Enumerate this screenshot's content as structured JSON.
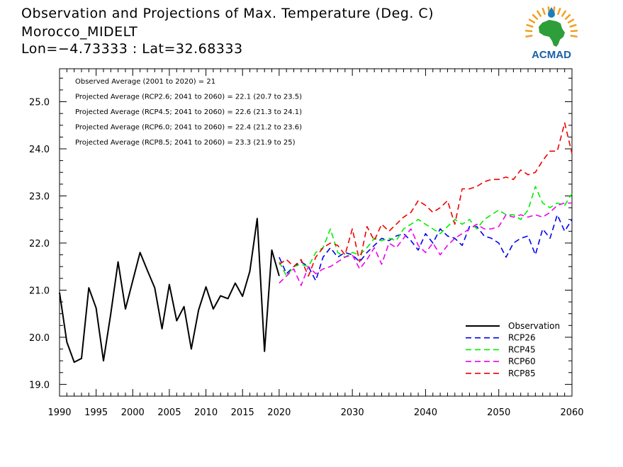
{
  "title": {
    "line1": "Observation and Projections of Max. Temperature (Deg. C)",
    "line2": "Morocco_MIDELT",
    "line3": "Lon=−4.73333 : Lat=32.68333"
  },
  "logo": {
    "text": "ACMAD",
    "icon": "africa-map-logo-icon",
    "colors": {
      "africa": "#2e9e3a",
      "sun": "#f0a020",
      "drop": "#1a7fc0",
      "text": "#1a5fa8"
    }
  },
  "annotations": [
    "Observed Average (2001 to 2020) = 21",
    "Projected Average (RCP2.6; 2041 to 2060) = 22.1 (20.7 to 23.5)",
    "Projected Average (RCP4.5; 2041 to 2060) = 22.6 (21.3 to 24.1)",
    "Projected Average (RCP6.0; 2041 to 2060) = 22.4 (21.2 to 23.6)",
    "Projected Average (RCP8.5; 2041 to 2060) = 23.3 (21.9 to 25)"
  ],
  "chart_data": {
    "type": "line",
    "x_range": [
      1990,
      2060
    ],
    "ylim": [
      18.75,
      25.7
    ],
    "x_ticks": [
      1990,
      1995,
      2000,
      2005,
      2010,
      2015,
      2020,
      2030,
      2040,
      2050,
      2060
    ],
    "y_ticks": [
      19.0,
      20.0,
      21.0,
      22.0,
      23.0,
      24.0,
      25.0
    ],
    "y_tick_labels": [
      "19.0",
      "20.0",
      "21.0",
      "22.0",
      "23.0",
      "24.0",
      "25.0"
    ],
    "grid": false,
    "legend_position": "bottom-right",
    "series": [
      {
        "name": "Observation",
        "color": "#000000",
        "dashed": false,
        "x": [
          1990,
          1991,
          1992,
          1993,
          1994,
          1995,
          1996,
          1997,
          1998,
          1999,
          2000,
          2001,
          2002,
          2003,
          2004,
          2005,
          2006,
          2007,
          2008,
          2009,
          2010,
          2011,
          2012,
          2013,
          2014,
          2015,
          2016,
          2017,
          2018,
          2019,
          2020
        ],
        "values": [
          20.95,
          19.9,
          19.47,
          19.55,
          21.05,
          20.62,
          19.5,
          20.5,
          21.6,
          20.6,
          21.2,
          21.8,
          21.42,
          21.05,
          20.18,
          21.12,
          20.35,
          20.65,
          19.75,
          20.58,
          21.07,
          20.6,
          20.88,
          20.82,
          21.15,
          20.87,
          21.4,
          22.52,
          19.7,
          21.85,
          21.3
        ]
      },
      {
        "name": "RCP26",
        "color": "#0000ee",
        "dashed": true,
        "x": [
          2020,
          2021,
          2022,
          2023,
          2024,
          2025,
          2026,
          2027,
          2028,
          2029,
          2030,
          2031,
          2032,
          2033,
          2034,
          2035,
          2036,
          2037,
          2038,
          2039,
          2040,
          2041,
          2042,
          2043,
          2044,
          2045,
          2046,
          2047,
          2048,
          2049,
          2050,
          2051,
          2052,
          2053,
          2054,
          2055,
          2056,
          2057,
          2058,
          2059,
          2060
        ],
        "values": [
          21.7,
          21.35,
          21.5,
          21.6,
          21.5,
          21.2,
          21.7,
          21.9,
          21.7,
          21.8,
          21.75,
          21.6,
          21.8,
          21.95,
          22.1,
          22.05,
          22.15,
          22.2,
          22.05,
          21.85,
          22.2,
          22.0,
          22.3,
          22.15,
          22.1,
          21.95,
          22.35,
          22.35,
          22.15,
          22.1,
          22.0,
          21.7,
          22.0,
          22.1,
          22.15,
          21.75,
          22.3,
          22.1,
          22.6,
          22.25,
          22.5
        ]
      },
      {
        "name": "RCP45",
        "color": "#00ee00",
        "dashed": true,
        "x": [
          2020,
          2021,
          2022,
          2023,
          2024,
          2025,
          2026,
          2027,
          2028,
          2029,
          2030,
          2031,
          2032,
          2033,
          2034,
          2035,
          2036,
          2037,
          2038,
          2039,
          2040,
          2041,
          2042,
          2043,
          2044,
          2045,
          2046,
          2047,
          2048,
          2049,
          2050,
          2051,
          2052,
          2053,
          2054,
          2055,
          2056,
          2057,
          2058,
          2059,
          2060
        ],
        "values": [
          21.6,
          21.3,
          21.5,
          21.55,
          21.5,
          21.8,
          21.9,
          22.3,
          21.8,
          21.7,
          21.8,
          21.75,
          21.9,
          22.1,
          22.05,
          22.1,
          22.05,
          22.3,
          22.4,
          22.5,
          22.4,
          22.3,
          22.2,
          22.35,
          22.5,
          22.4,
          22.5,
          22.3,
          22.5,
          22.6,
          22.7,
          22.6,
          22.6,
          22.5,
          22.7,
          23.2,
          22.85,
          22.75,
          22.85,
          22.8,
          23.05
        ]
      },
      {
        "name": "RCP60",
        "color": "#ee00ee",
        "dashed": true,
        "x": [
          2020,
          2021,
          2022,
          2023,
          2024,
          2025,
          2026,
          2027,
          2028,
          2029,
          2030,
          2031,
          2032,
          2033,
          2034,
          2035,
          2036,
          2037,
          2038,
          2039,
          2040,
          2041,
          2042,
          2043,
          2044,
          2045,
          2046,
          2047,
          2048,
          2049,
          2050,
          2051,
          2052,
          2053,
          2054,
          2055,
          2056,
          2057,
          2058,
          2059,
          2060
        ],
        "values": [
          21.15,
          21.3,
          21.45,
          21.1,
          21.5,
          21.35,
          21.45,
          21.5,
          21.6,
          21.7,
          21.75,
          21.45,
          21.65,
          21.9,
          21.55,
          22.0,
          21.9,
          22.1,
          22.3,
          21.95,
          21.8,
          22.0,
          21.75,
          21.95,
          22.1,
          22.2,
          22.3,
          22.4,
          22.3,
          22.3,
          22.35,
          22.6,
          22.55,
          22.6,
          22.55,
          22.6,
          22.55,
          22.65,
          22.8,
          22.85,
          22.85
        ]
      },
      {
        "name": "RCP85",
        "color": "#ee0000",
        "dashed": true,
        "x": [
          2020,
          2021,
          2022,
          2023,
          2024,
          2025,
          2026,
          2027,
          2028,
          2029,
          2030,
          2031,
          2032,
          2033,
          2034,
          2035,
          2036,
          2037,
          2038,
          2039,
          2040,
          2041,
          2042,
          2043,
          2044,
          2045,
          2046,
          2047,
          2048,
          2049,
          2050,
          2051,
          2052,
          2053,
          2054,
          2055,
          2056,
          2057,
          2058,
          2059,
          2060
        ],
        "values": [
          21.55,
          21.65,
          21.5,
          21.65,
          21.3,
          21.7,
          21.9,
          22.0,
          21.95,
          21.75,
          22.3,
          21.6,
          22.35,
          22.05,
          22.4,
          22.25,
          22.4,
          22.55,
          22.65,
          22.9,
          22.8,
          22.65,
          22.75,
          22.9,
          22.4,
          23.15,
          23.15,
          23.2,
          23.3,
          23.35,
          23.35,
          23.4,
          23.35,
          23.55,
          23.45,
          23.5,
          23.75,
          23.95,
          23.95,
          24.55,
          23.9
        ]
      }
    ]
  }
}
